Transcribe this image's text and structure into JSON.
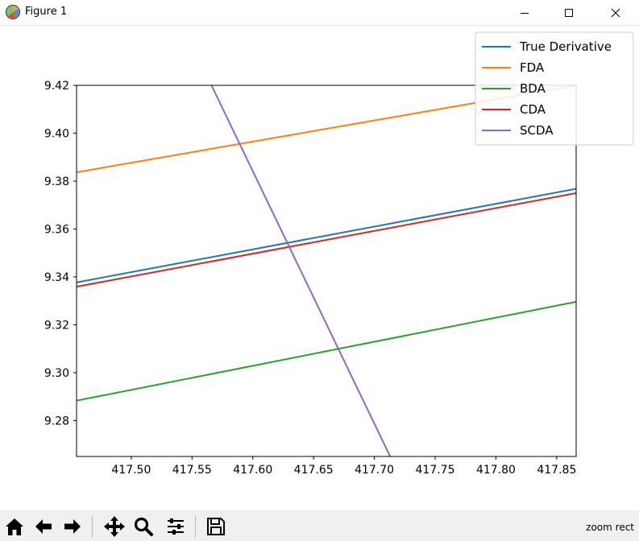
{
  "window": {
    "title": "Figure 1",
    "controls": [
      "minimize",
      "maximize",
      "close"
    ]
  },
  "toolbar": {
    "buttons": [
      "home-icon",
      "back-arrow-icon",
      "forward-arrow-icon",
      "pan-icon",
      "zoom-icon",
      "configure-subplots-icon",
      "save-icon"
    ],
    "status_text": "zoom rect"
  },
  "chart_data": {
    "type": "line",
    "title": "",
    "xlabel": "",
    "ylabel": "",
    "xlim": [
      417.455,
      417.866
    ],
    "ylim": [
      9.265,
      9.42
    ],
    "xticks": [
      "417.50",
      "417.55",
      "417.60",
      "417.65",
      "417.70",
      "417.75",
      "417.80",
      "417.85"
    ],
    "xtick_values": [
      417.5,
      417.55,
      417.6,
      417.65,
      417.7,
      417.75,
      417.8,
      417.85
    ],
    "yticks": [
      "9.28",
      "9.30",
      "9.32",
      "9.34",
      "9.36",
      "9.38",
      "9.40",
      "9.42"
    ],
    "ytick_values": [
      9.28,
      9.3,
      9.32,
      9.34,
      9.36,
      9.38,
      9.4,
      9.42
    ],
    "grid": false,
    "legend_position": "top-right",
    "series": [
      {
        "name": "True Derivative",
        "color": "#1f77b4",
        "x": [
          417.455,
          417.866
        ],
        "y": [
          9.3377,
          9.3768
        ]
      },
      {
        "name": "FDA",
        "color": "#ff7f0e",
        "x": [
          417.455,
          417.866
        ],
        "y": [
          9.3837,
          9.42
        ]
      },
      {
        "name": "BDA",
        "color": "#2ca02c",
        "x": [
          417.455,
          417.866
        ],
        "y": [
          9.2883,
          9.3296
        ]
      },
      {
        "name": "CDA",
        "color": "#d62728",
        "x": [
          417.455,
          417.866
        ],
        "y": [
          9.3359,
          9.375
        ]
      },
      {
        "name": "SCDA",
        "color": "#9467bd",
        "x": [
          417.566,
          417.713
        ],
        "y": [
          9.42,
          9.265
        ]
      }
    ]
  }
}
